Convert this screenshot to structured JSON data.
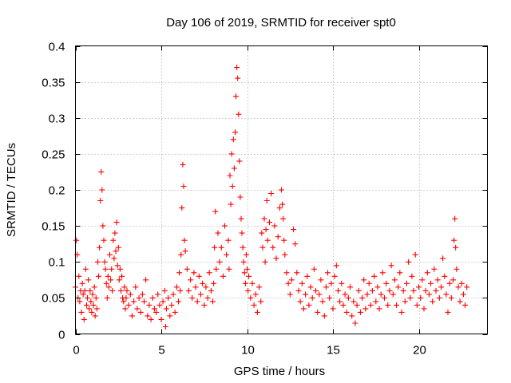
{
  "chart_data": {
    "type": "scatter",
    "title": "Day 106 of 2019, SRMTID for receiver spt0",
    "xlabel": "GPS time / hours",
    "ylabel": "SRMTID / TECUs",
    "xlim": [
      0,
      24
    ],
    "ylim": [
      0,
      0.4
    ],
    "x_ticks": [
      0,
      5,
      10,
      15,
      20
    ],
    "x_tick_labels": [
      "0",
      "5",
      "10",
      "15",
      "20"
    ],
    "y_ticks": [
      0,
      0.05,
      0.1,
      0.15,
      0.2,
      0.25,
      0.3,
      0.35,
      0.4
    ],
    "y_tick_labels": [
      "0",
      "0.05",
      "0.1",
      "0.15",
      "0.2",
      "0.25",
      "0.3",
      "0.35",
      "0.4"
    ],
    "grid": true,
    "marker": "plus",
    "color": "#ff0000",
    "series": [
      {
        "name": "SRMTID",
        "points": [
          [
            0.0,
            0.065
          ],
          [
            0.05,
            0.13
          ],
          [
            0.1,
            0.11
          ],
          [
            0.15,
            0.05
          ],
          [
            0.2,
            0.08
          ],
          [
            0.25,
            0.045
          ],
          [
            0.3,
            0.06
          ],
          [
            0.35,
            0.03
          ],
          [
            0.4,
            0.07
          ],
          [
            0.45,
            0.055
          ],
          [
            0.5,
            0.02
          ],
          [
            0.55,
            0.06
          ],
          [
            0.6,
            0.09
          ],
          [
            0.65,
            0.04
          ],
          [
            0.7,
            0.05
          ],
          [
            0.75,
            0.075
          ],
          [
            0.8,
            0.035
          ],
          [
            0.85,
            0.06
          ],
          [
            0.9,
            0.045
          ],
          [
            0.95,
            0.03
          ],
          [
            1.0,
            0.055
          ],
          [
            1.05,
            0.04
          ],
          [
            1.1,
            0.065
          ],
          [
            1.15,
            0.025
          ],
          [
            1.2,
            0.05
          ],
          [
            1.25,
            0.035
          ],
          [
            1.3,
            0.1
          ],
          [
            1.35,
            0.08
          ],
          [
            1.4,
            0.12
          ],
          [
            1.45,
            0.185
          ],
          [
            1.5,
            0.225
          ],
          [
            1.55,
            0.2
          ],
          [
            1.6,
            0.15
          ],
          [
            1.65,
            0.13
          ],
          [
            1.7,
            0.1
          ],
          [
            1.75,
            0.09
          ],
          [
            1.8,
            0.07
          ],
          [
            1.85,
            0.05
          ],
          [
            1.9,
            0.08
          ],
          [
            1.95,
            0.065
          ],
          [
            2.0,
            0.11
          ],
          [
            2.05,
            0.075
          ],
          [
            2.1,
            0.09
          ],
          [
            2.15,
            0.06
          ],
          [
            2.2,
            0.13
          ],
          [
            2.25,
            0.105
          ],
          [
            2.3,
            0.14
          ],
          [
            2.35,
            0.115
          ],
          [
            2.4,
            0.155
          ],
          [
            2.45,
            0.095
          ],
          [
            2.5,
            0.12
          ],
          [
            2.55,
            0.075
          ],
          [
            2.6,
            0.09
          ],
          [
            2.65,
            0.06
          ],
          [
            2.7,
            0.08
          ],
          [
            2.75,
            0.05
          ],
          [
            2.8,
            0.045
          ],
          [
            2.85,
            0.065
          ],
          [
            2.9,
            0.035
          ],
          [
            2.95,
            0.05
          ],
          [
            3.0,
            0.06
          ],
          [
            3.1,
            0.04
          ],
          [
            3.2,
            0.055
          ],
          [
            3.3,
            0.025
          ],
          [
            3.4,
            0.045
          ],
          [
            3.5,
            0.065
          ],
          [
            3.6,
            0.035
          ],
          [
            3.7,
            0.05
          ],
          [
            3.8,
            0.03
          ],
          [
            3.9,
            0.055
          ],
          [
            4.0,
            0.045
          ],
          [
            4.1,
            0.075
          ],
          [
            4.2,
            0.025
          ],
          [
            4.3,
            0.04
          ],
          [
            4.4,
            0.02
          ],
          [
            4.5,
            0.05
          ],
          [
            4.6,
            0.035
          ],
          [
            4.7,
            0.03
          ],
          [
            4.8,
            0.055
          ],
          [
            4.9,
            0.04
          ],
          [
            5.0,
            0.02
          ],
          [
            5.1,
            0.045
          ],
          [
            5.2,
            0.06
          ],
          [
            5.25,
            0.01
          ],
          [
            5.3,
            0.035
          ],
          [
            5.4,
            0.05
          ],
          [
            5.5,
            0.025
          ],
          [
            5.6,
            0.04
          ],
          [
            5.7,
            0.055
          ],
          [
            5.8,
            0.03
          ],
          [
            5.9,
            0.065
          ],
          [
            6.0,
            0.045
          ],
          [
            6.05,
            0.085
          ],
          [
            6.1,
            0.06
          ],
          [
            6.15,
            0.11
          ],
          [
            6.2,
            0.175
          ],
          [
            6.25,
            0.235
          ],
          [
            6.3,
            0.205
          ],
          [
            6.35,
            0.13
          ],
          [
            6.4,
            0.115
          ],
          [
            6.5,
            0.09
          ],
          [
            6.6,
            0.06
          ],
          [
            6.7,
            0.075
          ],
          [
            6.8,
            0.05
          ],
          [
            6.9,
            0.085
          ],
          [
            7.0,
            0.065
          ],
          [
            7.1,
            0.045
          ],
          [
            7.2,
            0.08
          ],
          [
            7.3,
            0.055
          ],
          [
            7.4,
            0.07
          ],
          [
            7.5,
            0.04
          ],
          [
            7.6,
            0.065
          ],
          [
            7.7,
            0.05
          ],
          [
            7.8,
            0.085
          ],
          [
            7.9,
            0.06
          ],
          [
            8.0,
            0.045
          ],
          [
            8.05,
            0.07
          ],
          [
            8.1,
            0.12
          ],
          [
            8.15,
            0.17
          ],
          [
            8.2,
            0.09
          ],
          [
            8.3,
            0.14
          ],
          [
            8.4,
            0.1
          ],
          [
            8.5,
            0.12
          ],
          [
            8.6,
            0.08
          ],
          [
            8.7,
            0.15
          ],
          [
            8.8,
            0.11
          ],
          [
            8.9,
            0.13
          ],
          [
            8.95,
            0.09
          ],
          [
            9.0,
            0.22
          ],
          [
            9.05,
            0.18
          ],
          [
            9.1,
            0.25
          ],
          [
            9.15,
            0.205
          ],
          [
            9.2,
            0.27
          ],
          [
            9.25,
            0.23
          ],
          [
            9.3,
            0.28
          ],
          [
            9.35,
            0.33
          ],
          [
            9.4,
            0.37
          ],
          [
            9.45,
            0.355
          ],
          [
            9.5,
            0.305
          ],
          [
            9.55,
            0.24
          ],
          [
            9.6,
            0.19
          ],
          [
            9.65,
            0.16
          ],
          [
            9.7,
            0.14
          ],
          [
            9.75,
            0.12
          ],
          [
            9.8,
            0.1
          ],
          [
            9.85,
            0.085
          ],
          [
            9.9,
            0.07
          ],
          [
            9.95,
            0.11
          ],
          [
            10.0,
            0.09
          ],
          [
            10.05,
            0.06
          ],
          [
            10.1,
            0.08
          ],
          [
            10.2,
            0.05
          ],
          [
            10.3,
            0.07
          ],
          [
            10.4,
            0.04
          ],
          [
            10.5,
            0.055
          ],
          [
            10.6,
            0.03
          ],
          [
            10.7,
            0.065
          ],
          [
            10.8,
            0.045
          ],
          [
            10.85,
            0.14
          ],
          [
            10.9,
            0.12
          ],
          [
            11.0,
            0.16
          ],
          [
            11.05,
            0.1
          ],
          [
            11.1,
            0.145
          ],
          [
            11.15,
            0.185
          ],
          [
            11.2,
            0.13
          ],
          [
            11.3,
            0.155
          ],
          [
            11.4,
            0.195
          ],
          [
            11.5,
            0.12
          ],
          [
            11.6,
            0.15
          ],
          [
            11.7,
            0.105
          ],
          [
            11.8,
            0.135
          ],
          [
            11.9,
            0.175
          ],
          [
            12.0,
            0.2
          ],
          [
            12.05,
            0.18
          ],
          [
            12.1,
            0.16
          ],
          [
            12.15,
            0.13
          ],
          [
            12.2,
            0.11
          ],
          [
            12.3,
            0.085
          ],
          [
            12.4,
            0.07
          ],
          [
            12.5,
            0.055
          ],
          [
            12.6,
            0.075
          ],
          [
            12.7,
            0.145
          ],
          [
            12.8,
            0.125
          ],
          [
            12.9,
            0.085
          ],
          [
            13.0,
            0.06
          ],
          [
            13.1,
            0.045
          ],
          [
            13.2,
            0.07
          ],
          [
            13.3,
            0.035
          ],
          [
            13.4,
            0.055
          ],
          [
            13.5,
            0.08
          ],
          [
            13.6,
            0.04
          ],
          [
            13.7,
            0.065
          ],
          [
            13.8,
            0.05
          ],
          [
            13.9,
            0.09
          ],
          [
            14.0,
            0.06
          ],
          [
            14.1,
            0.03
          ],
          [
            14.2,
            0.055
          ],
          [
            14.3,
            0.075
          ],
          [
            14.4,
            0.045
          ],
          [
            14.5,
            0.025
          ],
          [
            14.6,
            0.065
          ],
          [
            14.7,
            0.085
          ],
          [
            14.8,
            0.05
          ],
          [
            14.9,
            0.07
          ],
          [
            15.0,
            0.035
          ],
          [
            15.1,
            0.08
          ],
          [
            15.2,
            0.095
          ],
          [
            15.3,
            0.06
          ],
          [
            15.4,
            0.045
          ],
          [
            15.5,
            0.07
          ],
          [
            15.6,
            0.04
          ],
          [
            15.7,
            0.055
          ],
          [
            15.8,
            0.03
          ],
          [
            15.9,
            0.05
          ],
          [
            16.0,
            0.065
          ],
          [
            16.1,
            0.025
          ],
          [
            16.2,
            0.045
          ],
          [
            16.3,
            0.015
          ],
          [
            16.4,
            0.04
          ],
          [
            16.5,
            0.06
          ],
          [
            16.6,
            0.03
          ],
          [
            16.7,
            0.05
          ],
          [
            16.8,
            0.075
          ],
          [
            16.9,
            0.035
          ],
          [
            17.0,
            0.055
          ],
          [
            17.1,
            0.07
          ],
          [
            17.2,
            0.04
          ],
          [
            17.3,
            0.06
          ],
          [
            17.4,
            0.08
          ],
          [
            17.5,
            0.045
          ],
          [
            17.6,
            0.065
          ],
          [
            17.7,
            0.035
          ],
          [
            17.8,
            0.055
          ],
          [
            17.9,
            0.085
          ],
          [
            18.0,
            0.05
          ],
          [
            18.1,
            0.07
          ],
          [
            18.2,
            0.04
          ],
          [
            18.3,
            0.06
          ],
          [
            18.4,
            0.095
          ],
          [
            18.5,
            0.055
          ],
          [
            18.6,
            0.075
          ],
          [
            18.7,
            0.04
          ],
          [
            18.8,
            0.065
          ],
          [
            18.9,
            0.085
          ],
          [
            19.0,
            0.03
          ],
          [
            19.1,
            0.06
          ],
          [
            19.2,
            0.045
          ],
          [
            19.3,
            0.07
          ],
          [
            19.4,
            0.1
          ],
          [
            19.5,
            0.05
          ],
          [
            19.6,
            0.08
          ],
          [
            19.7,
            0.06
          ],
          [
            19.8,
            0.11
          ],
          [
            19.9,
            0.04
          ],
          [
            20.0,
            0.065
          ],
          [
            20.1,
            0.05
          ],
          [
            20.2,
            0.075
          ],
          [
            20.3,
            0.035
          ],
          [
            20.4,
            0.06
          ],
          [
            20.5,
            0.085
          ],
          [
            20.6,
            0.055
          ],
          [
            20.7,
            0.07
          ],
          [
            20.8,
            0.045
          ],
          [
            20.9,
            0.09
          ],
          [
            21.0,
            0.06
          ],
          [
            21.1,
            0.075
          ],
          [
            21.2,
            0.05
          ],
          [
            21.3,
            0.065
          ],
          [
            21.4,
            0.105
          ],
          [
            21.5,
            0.08
          ],
          [
            21.6,
            0.055
          ],
          [
            21.7,
            0.03
          ],
          [
            21.8,
            0.07
          ],
          [
            21.9,
            0.05
          ],
          [
            22.0,
            0.075
          ],
          [
            22.05,
            0.13
          ],
          [
            22.1,
            0.16
          ],
          [
            22.15,
            0.12
          ],
          [
            22.2,
            0.09
          ],
          [
            22.3,
            0.065
          ],
          [
            22.4,
            0.045
          ],
          [
            22.5,
            0.07
          ],
          [
            22.6,
            0.055
          ],
          [
            22.7,
            0.04
          ],
          [
            22.8,
            0.065
          ]
        ]
      }
    ]
  }
}
